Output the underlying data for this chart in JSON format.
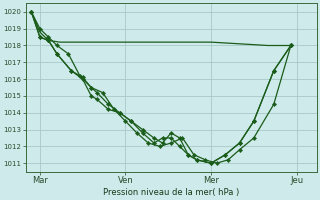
{
  "background_color": "#ceeaea",
  "grid_color": "#a8c8c8",
  "line_color": "#1a5c1a",
  "marker_color": "#1a5c1a",
  "xlabel": "Pression niveau de la mer( hPa )",
  "ylim": [
    1010.5,
    1020.5
  ],
  "yticks": [
    1011,
    1012,
    1013,
    1014,
    1015,
    1016,
    1017,
    1018,
    1019,
    1020
  ],
  "xtick_labels": [
    "Mar",
    "Ven",
    "Mer",
    "Jeu"
  ],
  "xtick_positions": [
    1,
    4,
    7,
    10
  ],
  "xlim": [
    0.5,
    10.7
  ],
  "flat_line": {
    "x": [
      0.7,
      1.0,
      1.3,
      1.7,
      2.1,
      3.0,
      4.0,
      5.0,
      6.0,
      7.0,
      8.0,
      9.0,
      9.8
    ],
    "y": [
      1020.0,
      1018.8,
      1018.3,
      1018.2,
      1018.2,
      1018.2,
      1018.2,
      1018.2,
      1018.2,
      1018.2,
      1018.1,
      1018.0,
      1018.0
    ]
  },
  "line1_x": [
    0.7,
    1.0,
    1.3,
    1.6,
    2.0,
    2.4,
    2.8,
    3.2,
    3.6,
    4.0,
    4.4,
    4.8,
    5.2,
    5.6,
    6.0,
    6.4,
    6.8,
    7.2,
    7.6,
    8.0,
    8.5,
    9.2,
    9.8
  ],
  "line1_y": [
    1020.0,
    1019.0,
    1018.5,
    1018.0,
    1017.5,
    1016.2,
    1015.5,
    1015.2,
    1014.2,
    1013.5,
    1012.8,
    1012.2,
    1012.0,
    1012.2,
    1012.5,
    1011.5,
    1011.2,
    1011.0,
    1011.2,
    1011.8,
    1012.5,
    1014.5,
    1018.0
  ],
  "line2_x": [
    0.7,
    1.0,
    1.3,
    1.6,
    2.1,
    2.5,
    2.8,
    3.0,
    3.4,
    3.8,
    4.2,
    4.6,
    5.0,
    5.3,
    5.6,
    5.9,
    6.2,
    6.5,
    7.0,
    7.5,
    8.0,
    8.5,
    9.2,
    9.8
  ],
  "line2_y": [
    1020.0,
    1018.5,
    1018.3,
    1017.5,
    1016.5,
    1016.1,
    1015.5,
    1015.2,
    1014.5,
    1014.0,
    1013.5,
    1013.0,
    1012.5,
    1012.2,
    1012.8,
    1012.5,
    1011.5,
    1011.2,
    1011.0,
    1011.5,
    1012.2,
    1013.5,
    1016.5,
    1018.0
  ],
  "line3_x": [
    0.7,
    1.0,
    1.3,
    1.6,
    2.1,
    2.5,
    2.8,
    3.0,
    3.4,
    3.8,
    4.2,
    4.6,
    5.0,
    5.3,
    5.6,
    5.9,
    6.2,
    6.5,
    7.0,
    7.5,
    8.0,
    8.5,
    9.2,
    9.8
  ],
  "line3_y": [
    1020.0,
    1018.5,
    1018.3,
    1017.5,
    1016.5,
    1016.0,
    1015.0,
    1014.8,
    1014.2,
    1014.0,
    1013.5,
    1012.8,
    1012.2,
    1012.5,
    1012.5,
    1012.0,
    1011.5,
    1011.2,
    1011.0,
    1011.5,
    1012.2,
    1013.5,
    1016.5,
    1018.0
  ]
}
